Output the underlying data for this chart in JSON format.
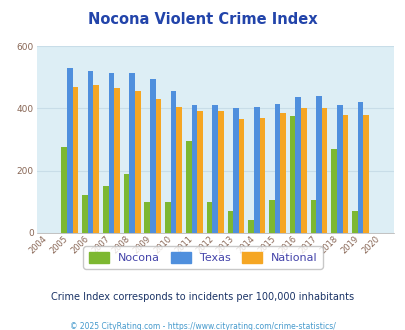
{
  "title": "Nocona Violent Crime Index",
  "years": [
    2004,
    2005,
    2006,
    2007,
    2008,
    2009,
    2010,
    2011,
    2012,
    2013,
    2014,
    2015,
    2016,
    2017,
    2018,
    2019,
    2020
  ],
  "nocona": [
    null,
    275,
    120,
    150,
    190,
    100,
    100,
    295,
    100,
    70,
    40,
    105,
    375,
    105,
    270,
    70,
    null
  ],
  "texas": [
    null,
    530,
    520,
    515,
    515,
    495,
    455,
    410,
    410,
    400,
    405,
    415,
    435,
    440,
    410,
    420,
    null
  ],
  "national": [
    null,
    470,
    475,
    465,
    455,
    430,
    405,
    390,
    390,
    365,
    370,
    385,
    400,
    400,
    380,
    380,
    null
  ],
  "nocona_color": "#7db831",
  "texas_color": "#4f8fdd",
  "national_color": "#f5a623",
  "bg_color": "#ddeef5",
  "ylim": [
    0,
    600
  ],
  "yticks": [
    0,
    200,
    400,
    600
  ],
  "subtitle": "Crime Index corresponds to incidents per 100,000 inhabitants",
  "footer": "© 2025 CityRating.com - https://www.cityrating.com/crime-statistics/",
  "title_color": "#2244aa",
  "subtitle_color": "#1a3366",
  "footer_color": "#4499cc",
  "legend_label_color": "#4444aa"
}
